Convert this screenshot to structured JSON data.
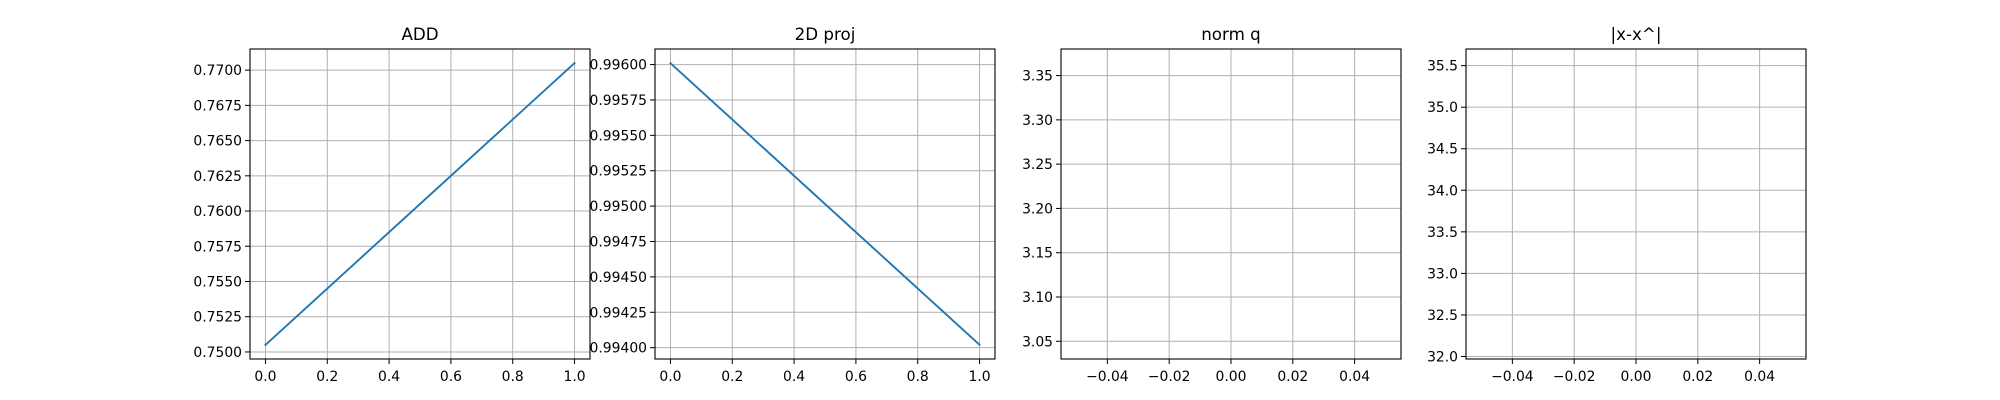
{
  "chart_data": [
    {
      "type": "line",
      "title": "ADD",
      "xlabel": "",
      "ylabel": "",
      "grid": true,
      "x": [
        0.0,
        1.0
      ],
      "series": [
        {
          "color": "#1f77b4",
          "values": [
            0.7505,
            0.7705
          ]
        }
      ],
      "xlim": [
        -0.05,
        1.05
      ],
      "ylim": [
        0.7495,
        0.7715
      ],
      "xticks": [
        0.0,
        0.2,
        0.4,
        0.6,
        0.8,
        1.0
      ],
      "xtick_labels": [
        "0.0",
        "0.2",
        "0.4",
        "0.6",
        "0.8",
        "1.0"
      ],
      "yticks": [
        0.75,
        0.7525,
        0.755,
        0.7575,
        0.76,
        0.7625,
        0.765,
        0.7675,
        0.77
      ],
      "ytick_labels": [
        "0.7500",
        "0.7525",
        "0.7550",
        "0.7575",
        "0.7600",
        "0.7625",
        "0.7650",
        "0.7675",
        "0.7700"
      ]
    },
    {
      "type": "line",
      "title": "2D proj",
      "xlabel": "",
      "ylabel": "",
      "grid": true,
      "x": [
        0.0,
        1.0
      ],
      "series": [
        {
          "color": "#1f77b4",
          "values": [
            0.99601,
            0.99402
          ]
        }
      ],
      "xlim": [
        -0.05,
        1.05
      ],
      "ylim": [
        0.99392,
        0.99611
      ],
      "xticks": [
        0.0,
        0.2,
        0.4,
        0.6,
        0.8,
        1.0
      ],
      "xtick_labels": [
        "0.0",
        "0.2",
        "0.4",
        "0.6",
        "0.8",
        "1.0"
      ],
      "yticks": [
        0.994,
        0.99425,
        0.9945,
        0.99475,
        0.995,
        0.99525,
        0.9955,
        0.99575,
        0.996
      ],
      "ytick_labels": [
        "0.99400",
        "0.99425",
        "0.99450",
        "0.99475",
        "0.99500",
        "0.99525",
        "0.99550",
        "0.99575",
        "0.99600"
      ]
    },
    {
      "type": "line",
      "title": "norm q",
      "xlabel": "",
      "ylabel": "",
      "grid": true,
      "x": [],
      "series": [],
      "xlim": [
        -0.055,
        0.055
      ],
      "ylim": [
        3.03,
        3.38
      ],
      "xticks": [
        -0.04,
        -0.02,
        0.0,
        0.02,
        0.04
      ],
      "xtick_labels": [
        "−0.04",
        "−0.02",
        "0.00",
        "0.02",
        "0.04"
      ],
      "yticks": [
        3.05,
        3.1,
        3.15,
        3.2,
        3.25,
        3.3,
        3.35
      ],
      "ytick_labels": [
        "3.05",
        "3.10",
        "3.15",
        "3.20",
        "3.25",
        "3.30",
        "3.35"
      ]
    },
    {
      "type": "line",
      "title": "|x-x^|",
      "xlabel": "",
      "ylabel": "",
      "grid": true,
      "x": [],
      "series": [],
      "xlim": [
        -0.055,
        0.055
      ],
      "ylim": [
        31.97,
        35.7
      ],
      "xticks": [
        -0.04,
        -0.02,
        0.0,
        0.02,
        0.04
      ],
      "xtick_labels": [
        "−0.04",
        "−0.02",
        "0.00",
        "0.02",
        "0.04"
      ],
      "yticks": [
        32.0,
        32.5,
        33.0,
        33.5,
        34.0,
        34.5,
        35.0,
        35.5
      ],
      "ytick_labels": [
        "32.0",
        "32.5",
        "33.0",
        "33.5",
        "34.0",
        "34.5",
        "35.0",
        "35.5"
      ]
    }
  ]
}
